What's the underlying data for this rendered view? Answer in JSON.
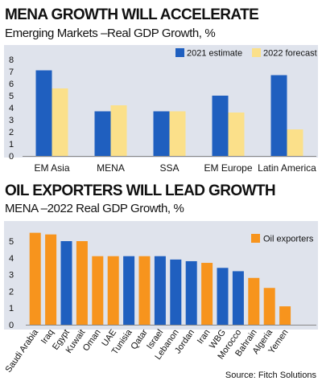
{
  "chart_data": [
    {
      "type": "bar",
      "title": "MENA GROWTH WILL ACCELERATE",
      "subtitle": "Emerging Markets –Real GDP Growth, %",
      "categories": [
        "EM Asia",
        "MENA",
        "SSA",
        "EM Europe",
        "Latin America"
      ],
      "series": [
        {
          "name": "2021 estimate",
          "color": "#1f5fbf",
          "values": [
            7.1,
            3.7,
            3.7,
            5.0,
            6.7
          ]
        },
        {
          "name": "2022 forecast",
          "color": "#fbe08a",
          "values": [
            5.6,
            4.2,
            3.7,
            3.6,
            2.2
          ]
        }
      ],
      "ylim": [
        0,
        8
      ],
      "yticks": [
        0,
        1,
        2,
        3,
        4,
        5,
        6,
        7,
        8
      ],
      "legend": "top-right",
      "grid": false,
      "panel_color": "#dfe3ec"
    },
    {
      "type": "bar",
      "title": "OIL EXPORTERS WILL LEAD GROWTH",
      "subtitle": "MENA –2022 Real GDP Growth, %",
      "categories": [
        "Saudi Arabia",
        "Iraq",
        "Egypt",
        "Kuwait",
        "Oman",
        "UAE",
        "Tunisia",
        "Qatar",
        "Israel",
        "Lebanon",
        "Jordan",
        "Iran",
        "WBG",
        "Morocco",
        "Bahrain",
        "Algeria",
        "Yemen"
      ],
      "values": [
        5.5,
        5.4,
        5.0,
        5.0,
        4.1,
        4.1,
        4.1,
        4.1,
        4.1,
        3.9,
        3.8,
        3.7,
        3.4,
        3.2,
        2.8,
        2.2,
        1.1
      ],
      "oil_exporter": [
        true,
        true,
        false,
        true,
        true,
        true,
        false,
        true,
        false,
        false,
        false,
        true,
        false,
        false,
        true,
        true,
        true
      ],
      "colors": {
        "oil": "#f7941d",
        "other": "#1f5fbf"
      },
      "legend_entries": [
        "Oil exporters"
      ],
      "ylim": [
        0,
        5
      ],
      "yticks": [
        0,
        1,
        2,
        3,
        4,
        5
      ],
      "legend": "top-right",
      "grid": false,
      "panel_color": "#dfe3ec"
    }
  ],
  "source": "Source: Fitch Solutions"
}
